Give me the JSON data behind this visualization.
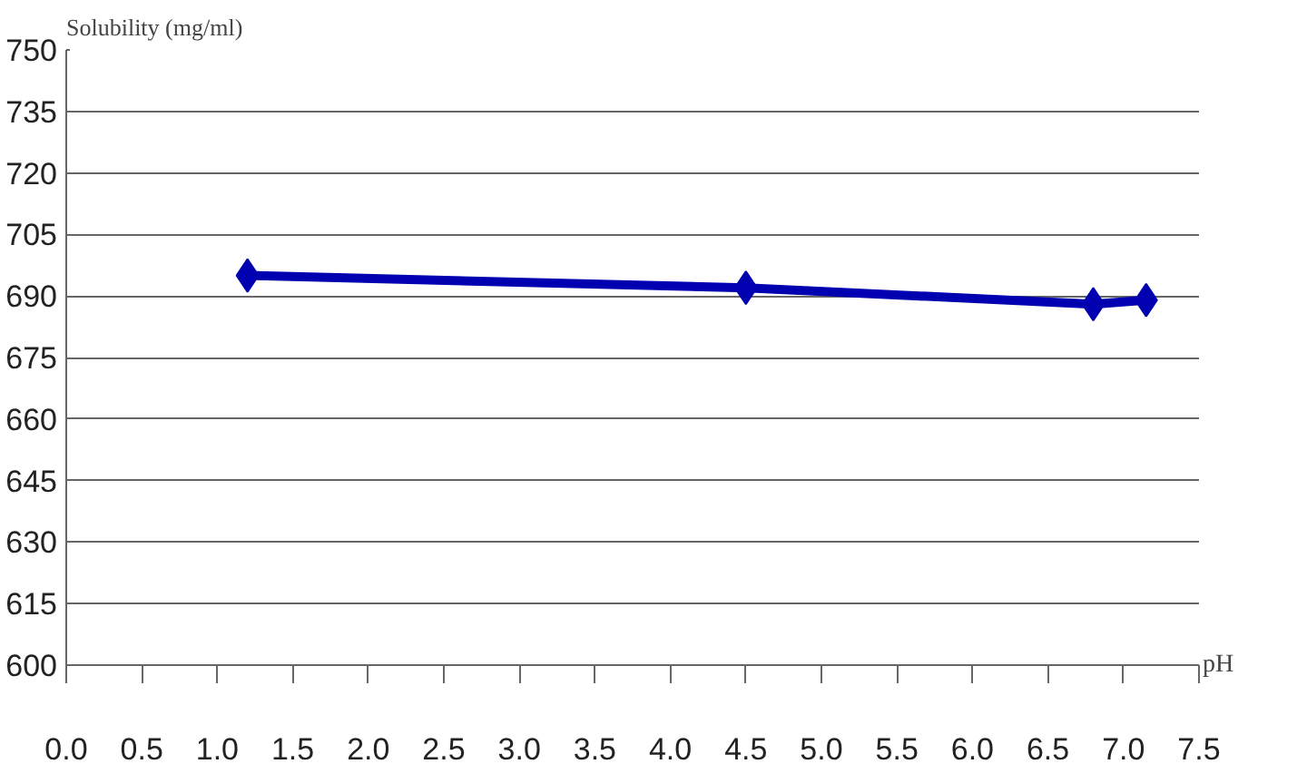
{
  "chart_data": {
    "type": "line",
    "ylabel": "Solubility (mg/ml)",
    "xlabel": "pH",
    "x": [
      1.2,
      4.5,
      6.8,
      7.15
    ],
    "series": [
      {
        "color": "#0000b0",
        "values": [
          695,
          692,
          688,
          689
        ]
      }
    ],
    "xlim": [
      0,
      7.5
    ],
    "xticks": [
      {
        "value": 0,
        "label": "0.0"
      },
      0.5,
      {
        "value": 1,
        "label": "1.0"
      },
      1.5,
      {
        "value": 2,
        "label": "2.0"
      },
      2.5,
      {
        "value": 3,
        "label": "3.0"
      },
      3.5,
      {
        "value": 4,
        "label": "4.0"
      },
      4.5,
      {
        "value": 5,
        "label": "5.0"
      },
      5.5,
      {
        "value": 6,
        "label": "6.0"
      },
      6.5,
      {
        "value": 7,
        "label": "7.0"
      },
      7.5
    ],
    "ylim": [
      600,
      750
    ],
    "yticks": [
      600,
      615,
      630,
      645,
      660,
      675,
      690,
      705,
      720,
      735,
      750
    ],
    "grid": "y",
    "marker": "diamond",
    "line_style": "solid"
  }
}
